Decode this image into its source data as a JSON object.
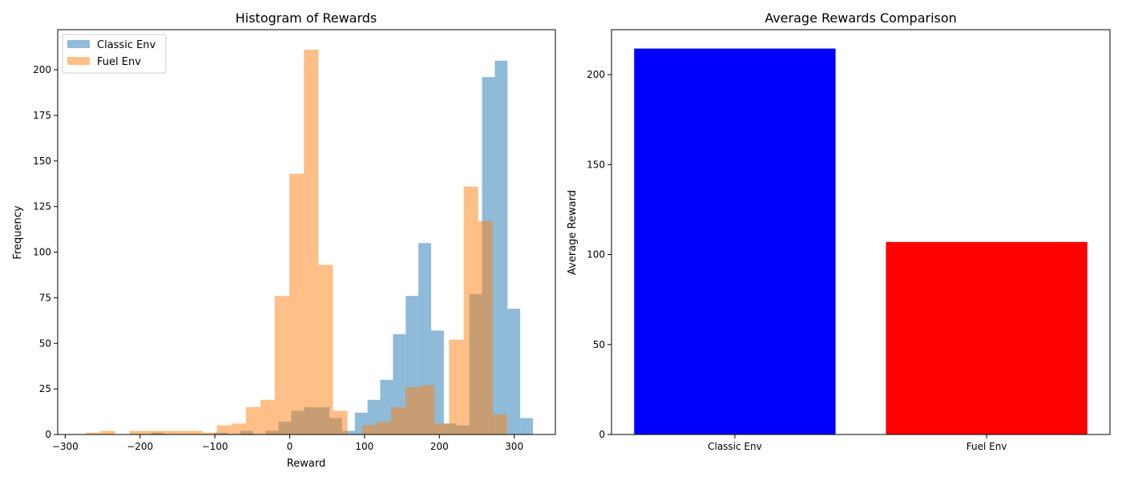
{
  "chart_data": [
    {
      "type": "histogram",
      "title": "Histogram of Rewards",
      "xlabel": "Reward",
      "ylabel": "Frequency",
      "xlim": [
        -310,
        355
      ],
      "ylim": [
        0,
        222
      ],
      "x_ticks": [
        -300,
        -200,
        -100,
        0,
        100,
        200,
        300
      ],
      "y_ticks": [
        0,
        25,
        50,
        75,
        100,
        125,
        150,
        175,
        200
      ],
      "legend_position": "top-left",
      "alpha": 0.5,
      "series": [
        {
          "name": "Classic Env",
          "color": "#1f77b4",
          "bin_start": -185,
          "bin_width": 17,
          "counts": [
            1,
            0,
            0,
            0,
            0,
            1,
            0,
            2,
            0,
            2,
            7,
            13,
            15,
            15,
            9,
            2,
            12,
            19,
            30,
            55,
            76,
            105,
            57,
            6,
            5,
            77,
            196,
            205,
            69,
            9
          ]
        },
        {
          "name": "Fuel Env",
          "color": "#ff7f0e",
          "bin_start": -272,
          "bin_width": 19.4,
          "counts": [
            1,
            2,
            0,
            2,
            2,
            2,
            2,
            2,
            1,
            5,
            6,
            15,
            19,
            76,
            143,
            211,
            93,
            13,
            0,
            5,
            7,
            15,
            26,
            27,
            6,
            52,
            136,
            117,
            11
          ]
        }
      ]
    },
    {
      "type": "bar",
      "title": "Average Rewards Comparison",
      "xlabel": "",
      "ylabel": "Average Reward",
      "categories": [
        "Classic Env",
        "Fuel Env"
      ],
      "values": [
        214.5,
        107
      ],
      "colors": [
        "#0000ff",
        "#ff0000"
      ],
      "ylim": [
        0,
        225
      ],
      "y_ticks": [
        0,
        50,
        100,
        150,
        200
      ]
    }
  ]
}
